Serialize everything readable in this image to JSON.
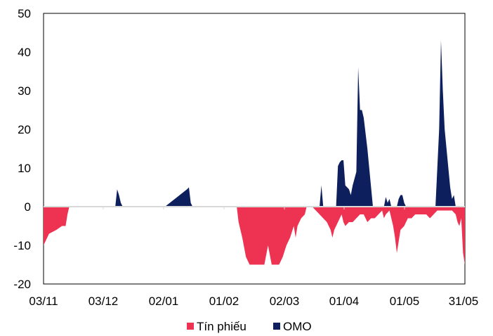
{
  "chart_data": {
    "type": "area",
    "x_ticks": [
      "03/11",
      "03/12",
      "02/01",
      "01/02",
      "02/03",
      "01/04",
      "01/05",
      "31/05"
    ],
    "y_ticks": [
      "50",
      "40",
      "30",
      "20",
      "10",
      "0",
      "-10",
      "-20"
    ],
    "ylim": [
      -20,
      50
    ],
    "grid": false,
    "legend_position": "bottom",
    "series": [
      {
        "name": "Tín phiếu",
        "color": "#EE3251",
        "points": [
          [
            0,
            -10
          ],
          [
            3,
            -7
          ],
          [
            7,
            -6
          ],
          [
            10,
            -5
          ],
          [
            12,
            -5
          ],
          [
            13,
            -2
          ],
          [
            14,
            0
          ],
          [
            105,
            0
          ],
          [
            106,
            -4
          ],
          [
            108,
            -8
          ],
          [
            110,
            -13
          ],
          [
            112,
            -15
          ],
          [
            114,
            -15
          ],
          [
            116,
            -15
          ],
          [
            118,
            -15
          ],
          [
            120,
            -15
          ],
          [
            122,
            -10
          ],
          [
            124,
            -15
          ],
          [
            126,
            -15
          ],
          [
            128,
            -15
          ],
          [
            130,
            -13
          ],
          [
            132,
            -10
          ],
          [
            134,
            -8
          ],
          [
            136,
            -5
          ],
          [
            137,
            -8
          ],
          [
            138,
            -5
          ],
          [
            140,
            -3
          ],
          [
            142,
            -2
          ],
          [
            143,
            0
          ],
          [
            146,
            0
          ],
          [
            148,
            -1
          ],
          [
            150,
            -2
          ],
          [
            152,
            -3
          ],
          [
            154,
            -4
          ],
          [
            156,
            -6
          ],
          [
            157,
            -8
          ],
          [
            158,
            -6
          ],
          [
            160,
            -4
          ],
          [
            162,
            -2
          ],
          [
            163,
            -4
          ],
          [
            164,
            -5
          ],
          [
            166,
            -4
          ],
          [
            168,
            -4
          ],
          [
            170,
            -3
          ],
          [
            172,
            -2
          ],
          [
            174,
            -2
          ],
          [
            176,
            -4
          ],
          [
            178,
            -3
          ],
          [
            180,
            -3
          ],
          [
            182,
            -2
          ],
          [
            184,
            -1
          ],
          [
            185,
            -3
          ],
          [
            186,
            -2
          ],
          [
            188,
            -1
          ],
          [
            190,
            -5
          ],
          [
            191,
            -8
          ],
          [
            192,
            -12
          ],
          [
            193,
            -9
          ],
          [
            194,
            -6
          ],
          [
            196,
            -5
          ],
          [
            198,
            -3
          ],
          [
            200,
            -3
          ],
          [
            202,
            -2
          ],
          [
            204,
            -2
          ],
          [
            206,
            -2
          ],
          [
            208,
            -2
          ],
          [
            210,
            -3
          ],
          [
            212,
            -2
          ],
          [
            214,
            -1
          ],
          [
            216,
            -1
          ],
          [
            218,
            -1
          ],
          [
            220,
            -1
          ],
          [
            222,
            -1
          ],
          [
            224,
            -2
          ],
          [
            225,
            -4
          ],
          [
            226,
            -5
          ],
          [
            227,
            -3
          ],
          [
            228,
            -12
          ],
          [
            229,
            -15
          ]
        ]
      },
      {
        "name": "OMO",
        "color": "#0D1F5C",
        "points": [
          [
            0,
            0
          ],
          [
            39,
            0
          ],
          [
            40,
            4.5
          ],
          [
            41,
            3
          ],
          [
            42,
            1
          ],
          [
            43,
            0
          ],
          [
            66,
            0
          ],
          [
            70,
            1.5
          ],
          [
            74,
            3
          ],
          [
            78,
            4.5
          ],
          [
            79,
            5
          ],
          [
            80,
            1
          ],
          [
            81,
            0
          ],
          [
            150,
            0
          ],
          [
            151,
            5.5
          ],
          [
            152,
            0
          ],
          [
            159,
            0
          ],
          [
            160,
            10.5
          ],
          [
            161,
            11.5
          ],
          [
            162,
            12
          ],
          [
            163,
            12
          ],
          [
            164,
            5.5
          ],
          [
            166,
            4.5
          ],
          [
            167,
            3
          ],
          [
            168,
            5.5
          ],
          [
            170,
            9
          ],
          [
            171,
            36
          ],
          [
            172,
            25
          ],
          [
            173,
            25
          ],
          [
            174,
            23
          ],
          [
            176,
            15
          ],
          [
            177,
            10
          ],
          [
            178,
            5
          ],
          [
            179,
            0
          ],
          [
            185,
            0
          ],
          [
            186,
            2.5
          ],
          [
            187,
            1
          ],
          [
            188,
            2
          ],
          [
            189,
            0
          ],
          [
            192,
            0
          ],
          [
            193,
            2
          ],
          [
            194,
            3
          ],
          [
            195,
            3
          ],
          [
            196,
            1
          ],
          [
            197,
            0
          ],
          [
            213,
            0
          ],
          [
            214,
            10
          ],
          [
            215,
            20
          ],
          [
            216,
            43
          ],
          [
            217,
            30
          ],
          [
            218,
            20
          ],
          [
            220,
            10
          ],
          [
            221,
            5
          ],
          [
            222,
            2
          ],
          [
            223,
            3
          ],
          [
            224,
            0
          ]
        ]
      }
    ]
  }
}
